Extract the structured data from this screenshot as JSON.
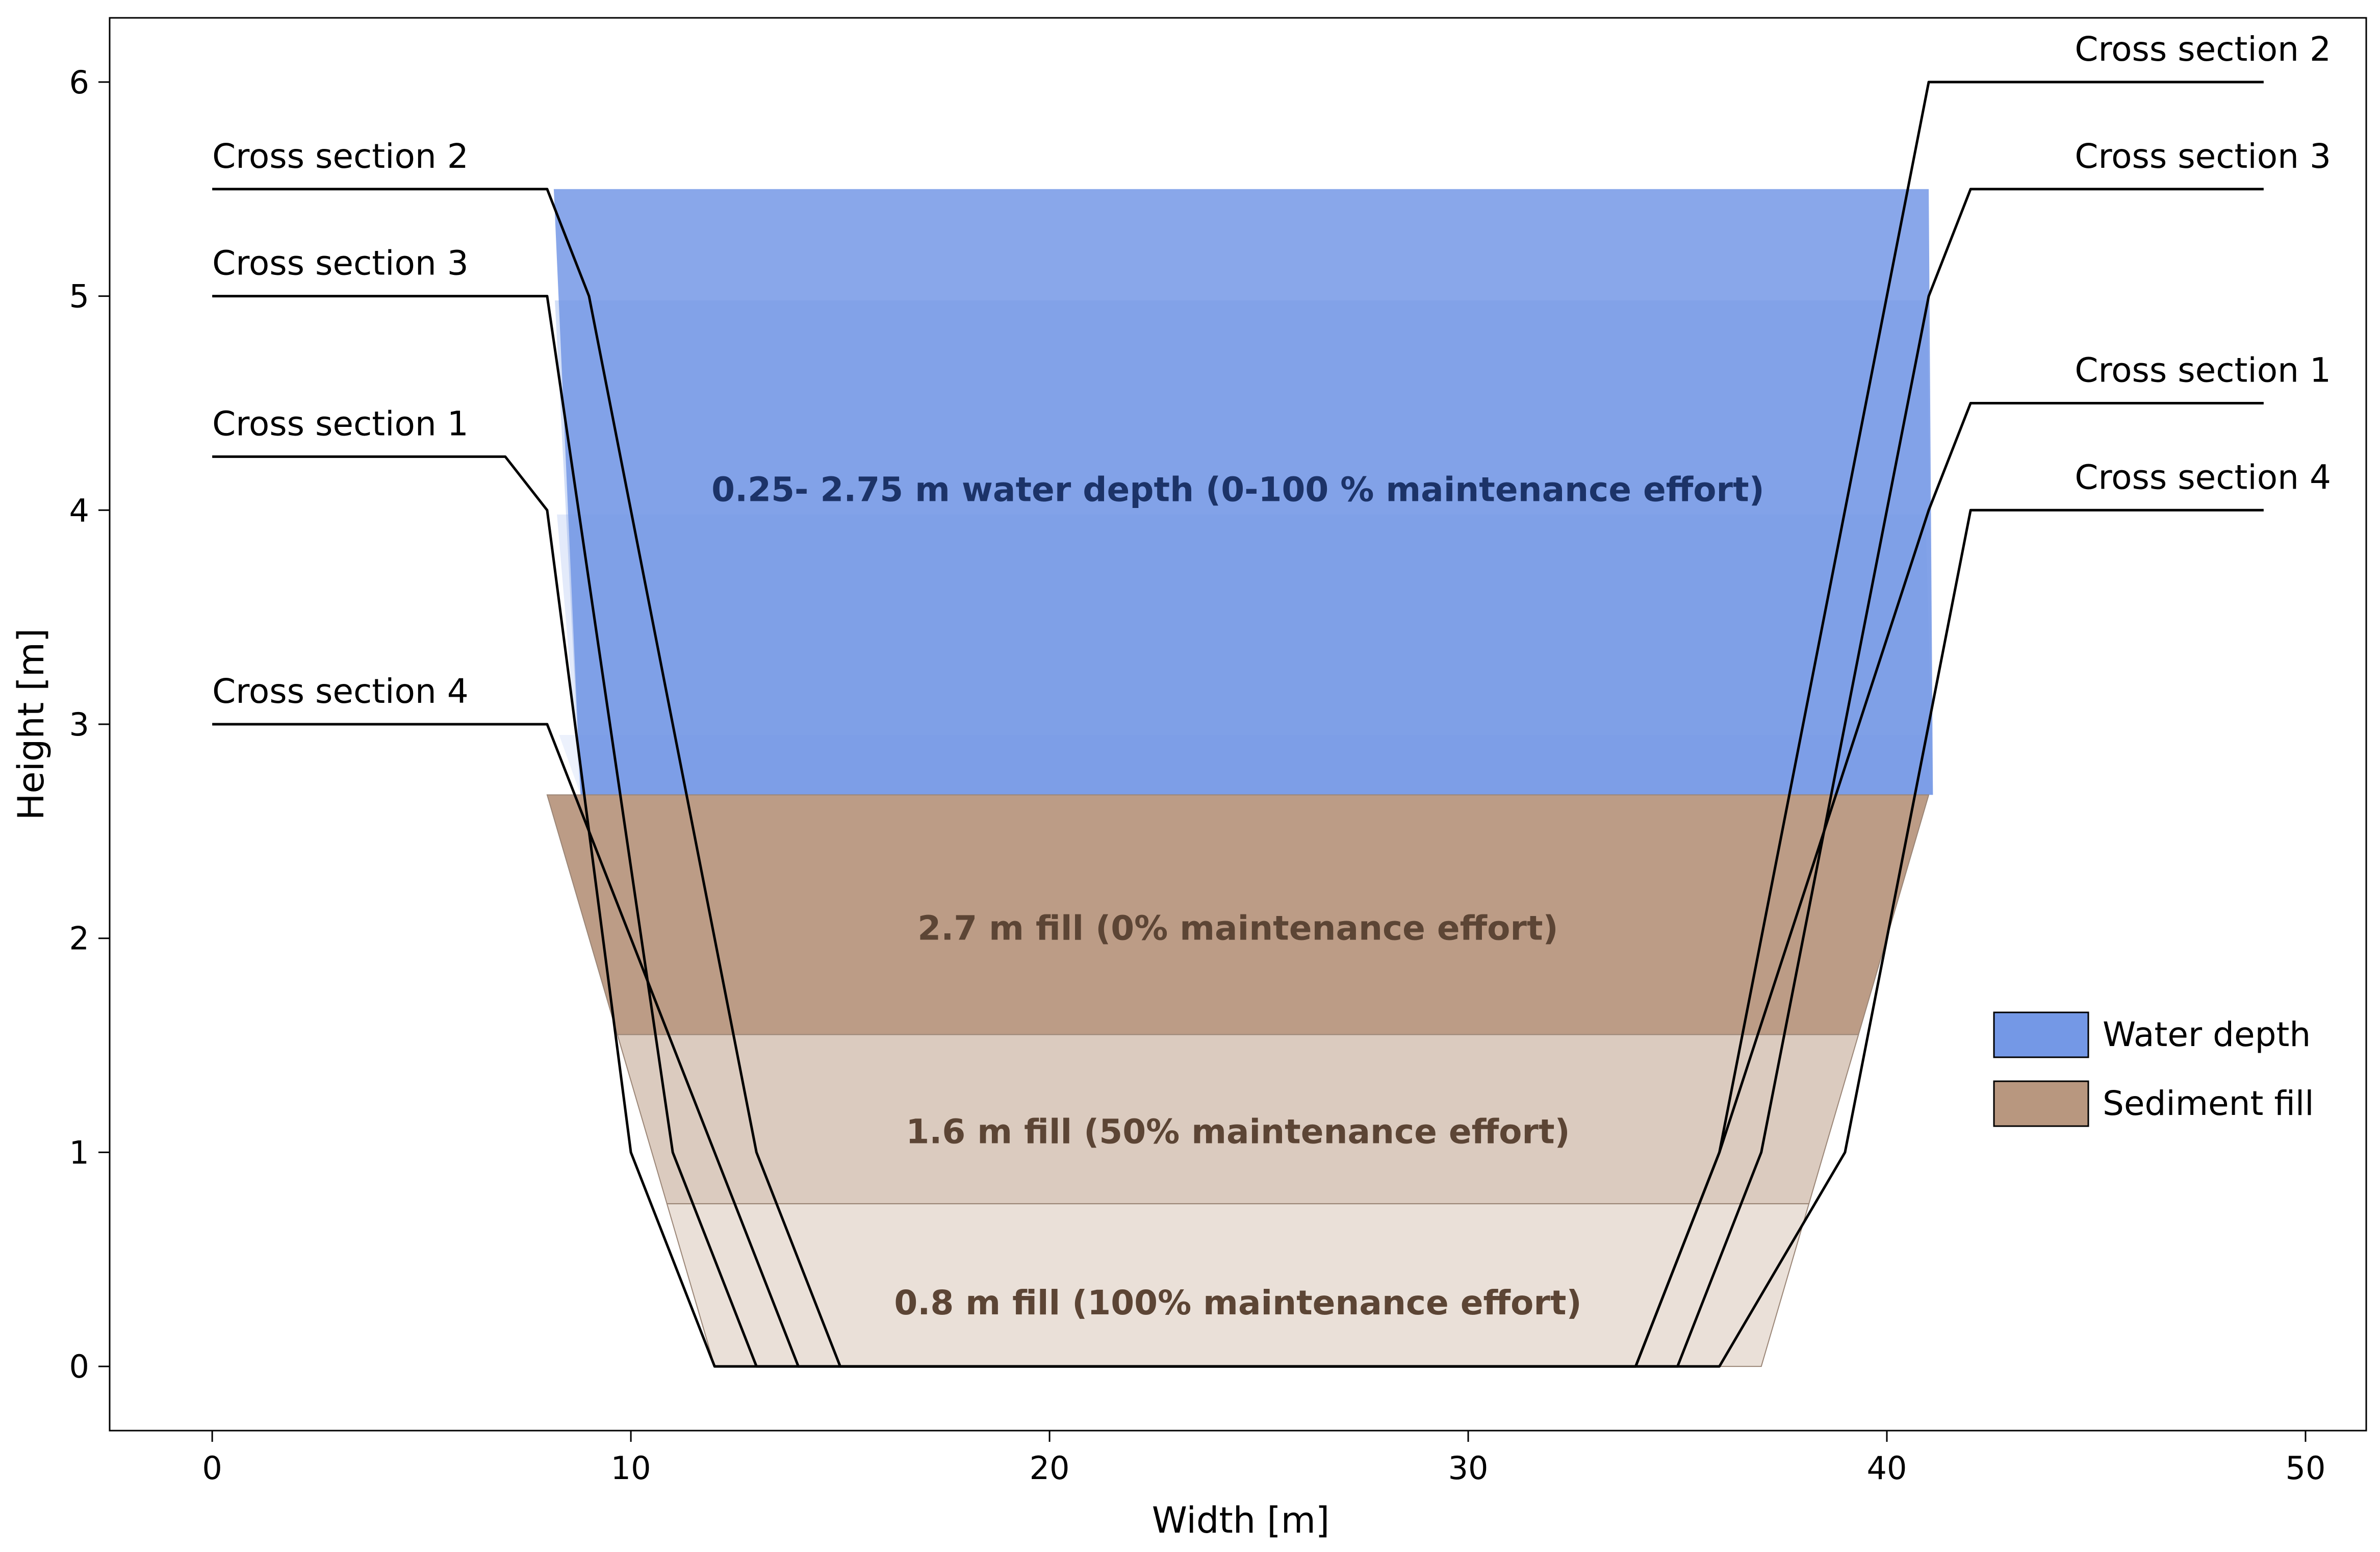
{
  "chart_data": {
    "type": "area",
    "title": "",
    "xlabel": "Width [m]",
    "ylabel": "Height [m]",
    "xlim": [
      -2.45,
      51.45
    ],
    "ylim": [
      -0.3,
      6.3
    ],
    "xticks": [
      0,
      10,
      20,
      30,
      40,
      50
    ],
    "yticks": [
      0,
      1,
      2,
      3,
      4,
      5,
      6
    ],
    "grid": false,
    "legend_position": "center-right",
    "colors": {
      "water": "#7498e6",
      "sediment": "#b8977f",
      "outline": "#000000",
      "water_label": "#1c3368",
      "fill_label": "#5c4535"
    },
    "legend": [
      {
        "label": "Water depth",
        "color": "#7498e6"
      },
      {
        "label": "Sediment fill",
        "color": "#b8977f"
      }
    ],
    "water_levels": [
      {
        "section": "Cross section 2",
        "top": 5.5,
        "left_bank": [
          8.0,
          9.0
        ],
        "right_bank": [
          40.5,
          41.0
        ],
        "opacity": 0.85
      },
      {
        "section": "Cross section 3",
        "top": 4.98,
        "left_bank": [
          8.0,
          9.0
        ],
        "right_bank": [
          40.5,
          41.0
        ],
        "opacity": 0.7
      },
      {
        "section": "Cross section 1",
        "top": 3.98,
        "left_bank": [
          8.0,
          9.0
        ],
        "right_bank": [
          40.5,
          41.0
        ],
        "opacity": 0.45
      },
      {
        "section": "Cross section 4",
        "top": 2.95,
        "left_bank": [
          8.0,
          9.0
        ],
        "right_bank": [
          40.5,
          41.0
        ],
        "opacity": 0.3
      }
    ],
    "water_bottom": 2.67,
    "fill_bands": [
      {
        "bottom": 1.55,
        "top": 2.67,
        "opacity": 0.95
      },
      {
        "bottom": 0.76,
        "top": 1.55,
        "opacity": 0.5
      },
      {
        "bottom": 0.0,
        "top": 0.76,
        "opacity": 0.3
      }
    ],
    "fill_band_edges": {
      "left": [
        8.0,
        12.0
      ],
      "right": [
        37.0,
        41.0
      ]
    },
    "cross_sections": [
      {
        "name": "Cross section 1",
        "x": [
          0,
          7,
          8,
          10,
          12,
          34,
          36,
          41,
          42,
          49
        ],
        "y": [
          4.25,
          4.25,
          4,
          1,
          0,
          0,
          1,
          4,
          4.5,
          4.5
        ]
      },
      {
        "name": "Cross section 2",
        "x": [
          0,
          8,
          9,
          13,
          15,
          34,
          36,
          41,
          49
        ],
        "y": [
          5.5,
          5.5,
          5,
          1,
          0,
          0,
          1,
          6,
          6
        ]
      },
      {
        "name": "Cross section 3",
        "x": [
          0,
          8,
          11,
          13,
          35,
          37,
          41,
          42,
          49
        ],
        "y": [
          5,
          5,
          1,
          0,
          0,
          1,
          5,
          5.5,
          5.5
        ]
      },
      {
        "name": "Cross section 4",
        "x": [
          0,
          8,
          12,
          14,
          36,
          39,
          42,
          49
        ],
        "y": [
          3,
          3,
          1,
          0,
          0,
          1,
          4,
          4
        ]
      }
    ],
    "line_labels": [
      {
        "text": "Cross section 2",
        "x": 0,
        "y": 5.5,
        "side": "left"
      },
      {
        "text": "Cross section 3",
        "x": 0,
        "y": 5.0,
        "side": "left"
      },
      {
        "text": "Cross section 1",
        "x": 0,
        "y": 4.25,
        "side": "left"
      },
      {
        "text": "Cross section 4",
        "x": 0,
        "y": 3.0,
        "side": "left"
      },
      {
        "text": "Cross section 2",
        "x": 50,
        "y": 6.0,
        "side": "right"
      },
      {
        "text": "Cross section 3",
        "x": 50,
        "y": 5.5,
        "side": "right"
      },
      {
        "text": "Cross section 1",
        "x": 50,
        "y": 4.5,
        "side": "right"
      },
      {
        "text": "Cross section 4",
        "x": 50,
        "y": 4.0,
        "side": "right"
      }
    ],
    "annotations": [
      {
        "text": "0.25- 2.75 m water depth (0-100 % maintenance effort)",
        "x": 24.5,
        "y": 4.1,
        "kind": "water"
      },
      {
        "text": "2.7 m fill (0% maintenance effort)",
        "x": 24.5,
        "y": 2.05,
        "kind": "fill"
      },
      {
        "text": "1.6 m fill (50% maintenance effort)",
        "x": 24.5,
        "y": 1.1,
        "kind": "fill"
      },
      {
        "text": "0.8 m fill (100% maintenance effort)",
        "x": 24.5,
        "y": 0.3,
        "kind": "fill"
      }
    ]
  }
}
